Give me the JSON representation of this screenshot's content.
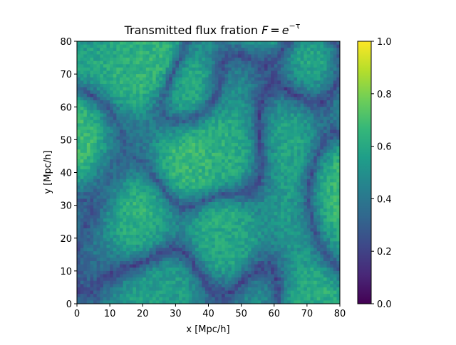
{
  "chart_data": {
    "type": "heatmap",
    "title": "Transmitted flux fration",
    "title_math": {
      "lhs": "F",
      "equals": "=",
      "base": "e",
      "exponent": "−τ"
    },
    "xlabel": "x [Mpc/h]",
    "ylabel": "y [Mpc/h]",
    "xlim": [
      0,
      80
    ],
    "ylim": [
      0,
      80
    ],
    "xticks": [
      "0",
      "10",
      "20",
      "30",
      "40",
      "50",
      "60",
      "70",
      "80"
    ],
    "yticks": [
      "0",
      "10",
      "20",
      "30",
      "40",
      "50",
      "60",
      "70",
      "80"
    ],
    "colorbar": {
      "colormap": "viridis",
      "range": [
        0.0,
        1.0
      ],
      "ticks": [
        "0.0",
        "0.2",
        "0.4",
        "0.6",
        "0.8",
        "1.0"
      ]
    },
    "grid": false,
    "grid_resolution": [
      80,
      80
    ]
  },
  "colors": {
    "viridis_stops": [
      "#440154",
      "#482878",
      "#3e4989",
      "#31688e",
      "#26828e",
      "#1f9e89",
      "#35b779",
      "#6ece58",
      "#b5de2b",
      "#fde725"
    ],
    "axis": "#000000",
    "background": "#ffffff"
  }
}
